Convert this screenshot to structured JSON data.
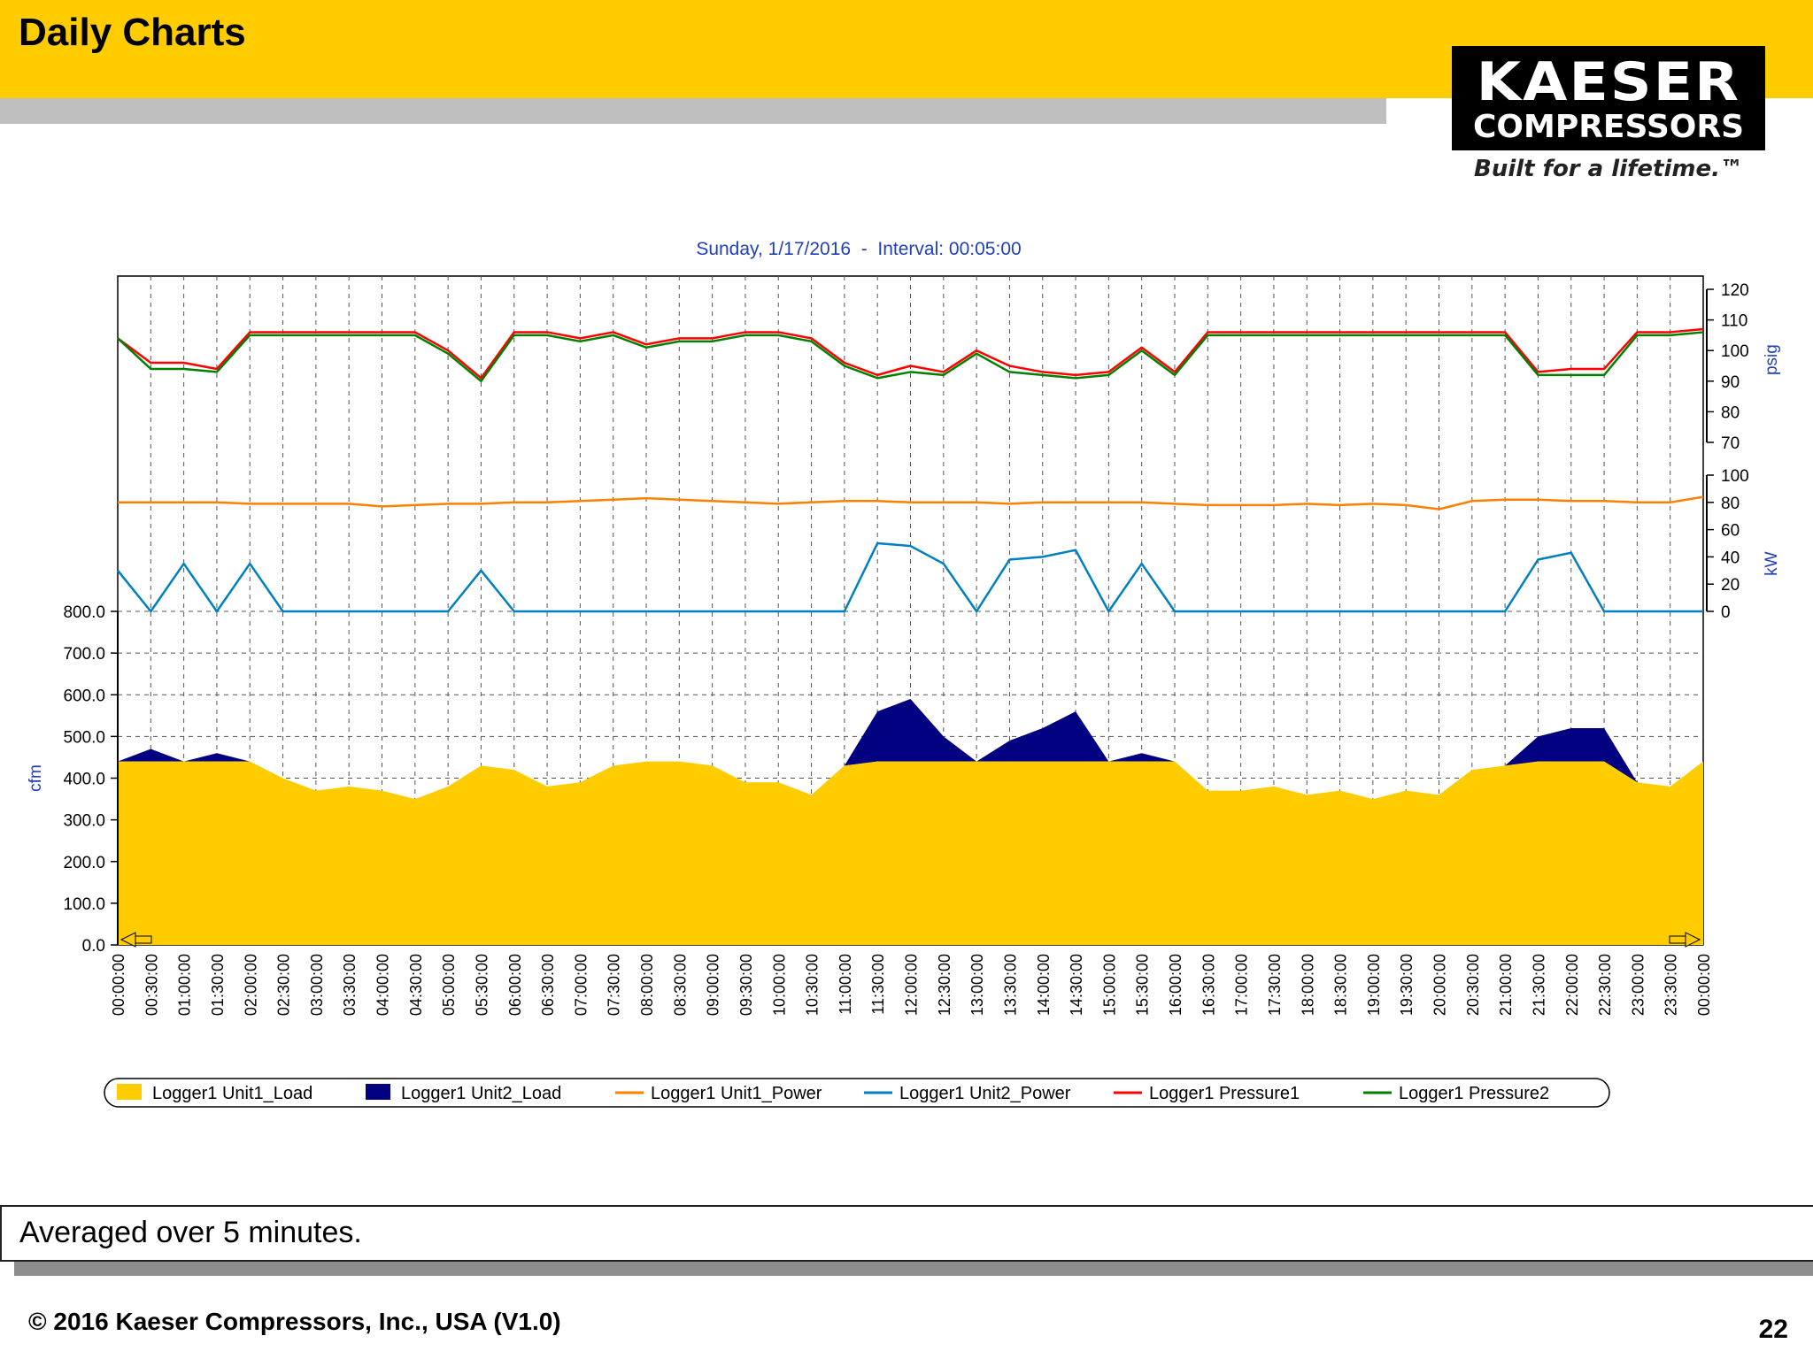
{
  "slide": {
    "title": "Daily Charts",
    "logo_line1": "KAESER",
    "logo_line2": "COMPRESSORS",
    "tagline": "Built for a lifetime.™",
    "note": "Averaged over 5 minutes.",
    "footer": "© 2016 Kaeser Compressors, Inc., USA (V1.0)",
    "page_number": "22"
  },
  "chart_data": {
    "type": "area",
    "title": "Sunday, 1/17/2016  -  Interval: 00:05:00",
    "x": [
      "00:00:00",
      "00:30:00",
      "01:00:00",
      "01:30:00",
      "02:00:00",
      "02:30:00",
      "03:00:00",
      "03:30:00",
      "04:00:00",
      "04:30:00",
      "05:00:00",
      "05:30:00",
      "06:00:00",
      "06:30:00",
      "07:00:00",
      "07:30:00",
      "08:00:00",
      "08:30:00",
      "09:00:00",
      "09:30:00",
      "10:00:00",
      "10:30:00",
      "11:00:00",
      "11:30:00",
      "12:00:00",
      "12:30:00",
      "13:00:00",
      "13:30:00",
      "14:00:00",
      "14:30:00",
      "15:00:00",
      "15:30:00",
      "16:00:00",
      "16:30:00",
      "17:00:00",
      "17:30:00",
      "18:00:00",
      "18:30:00",
      "19:00:00",
      "19:30:00",
      "20:00:00",
      "20:30:00",
      "21:00:00",
      "21:30:00",
      "22:00:00",
      "22:30:00",
      "23:00:00",
      "23:30:00",
      "00:00:00"
    ],
    "axes": {
      "cfm": {
        "label": "cfm",
        "range": [
          0,
          800
        ],
        "ticks": [
          "0.0",
          "100.0",
          "200.0",
          "300.0",
          "400.0",
          "500.0",
          "600.0",
          "700.0",
          "800.0"
        ]
      },
      "kw": {
        "label": "kW",
        "range": [
          0,
          100
        ],
        "ticks": [
          "0",
          "20",
          "40",
          "60",
          "80",
          "100"
        ]
      },
      "psig": {
        "label": "psig",
        "range": [
          70,
          120
        ],
        "ticks": [
          "70",
          "80",
          "90",
          "100",
          "110",
          "120"
        ]
      }
    },
    "grid": true,
    "legend_position": "bottom",
    "series": [
      {
        "name": "Logger1 Unit1_Load",
        "axis": "cfm",
        "color": "#ffcc00",
        "style": "area",
        "values": [
          440,
          440,
          440,
          440,
          440,
          400,
          370,
          380,
          370,
          350,
          380,
          430,
          420,
          380,
          390,
          430,
          440,
          440,
          430,
          390,
          390,
          360,
          430,
          440,
          440,
          440,
          440,
          440,
          440,
          440,
          440,
          440,
          440,
          370,
          370,
          380,
          360,
          370,
          350,
          370,
          360,
          420,
          430,
          440,
          440,
          440,
          390,
          380,
          440
        ]
      },
      {
        "name": "Logger1 Unit2_Load",
        "axis": "cfm",
        "color": "#000080",
        "style": "area",
        "values": [
          0,
          30,
          0,
          20,
          0,
          0,
          0,
          0,
          0,
          0,
          0,
          0,
          0,
          0,
          0,
          0,
          0,
          0,
          0,
          0,
          0,
          0,
          0,
          120,
          150,
          60,
          0,
          50,
          80,
          120,
          0,
          20,
          0,
          0,
          0,
          0,
          0,
          0,
          0,
          0,
          0,
          0,
          0,
          60,
          80,
          80,
          0,
          0,
          0
        ]
      },
      {
        "name": "Logger1 Unit1_Power",
        "axis": "kw",
        "color": "#ff8000",
        "style": "line",
        "values": [
          80,
          80,
          80,
          80,
          79,
          79,
          79,
          79,
          77,
          78,
          79,
          79,
          80,
          80,
          81,
          82,
          83,
          82,
          81,
          80,
          79,
          80,
          81,
          81,
          80,
          80,
          80,
          79,
          80,
          80,
          80,
          80,
          79,
          78,
          78,
          78,
          79,
          78,
          79,
          78,
          75,
          81,
          82,
          82,
          81,
          81,
          80,
          80,
          84
        ]
      },
      {
        "name": "Logger1 Unit2_Power",
        "axis": "kw",
        "color": "#0080c0",
        "style": "line",
        "values": [
          30,
          0,
          35,
          0,
          35,
          0,
          0,
          0,
          0,
          0,
          0,
          30,
          0,
          0,
          0,
          0,
          0,
          0,
          0,
          0,
          0,
          0,
          0,
          50,
          48,
          35,
          0,
          38,
          40,
          45,
          0,
          35,
          0,
          0,
          0,
          0,
          0,
          0,
          0,
          0,
          0,
          0,
          0,
          38,
          43,
          0,
          0,
          0,
          0
        ]
      },
      {
        "name": "Logger1 Pressure1",
        "axis": "psig",
        "color": "#ff0000",
        "style": "line",
        "values": [
          104,
          96,
          96,
          94,
          106,
          106,
          106,
          106,
          106,
          106,
          100,
          91,
          106,
          106,
          104,
          106,
          102,
          104,
          104,
          106,
          106,
          104,
          96,
          92,
          95,
          93,
          100,
          95,
          93,
          92,
          93,
          101,
          93,
          106,
          106,
          106,
          106,
          106,
          106,
          106,
          106,
          106,
          106,
          93,
          94,
          94,
          106,
          106,
          107
        ]
      },
      {
        "name": "Logger1 Pressure2",
        "axis": "psig",
        "color": "#008000",
        "style": "line",
        "values": [
          104,
          94,
          94,
          93,
          105,
          105,
          105,
          105,
          105,
          105,
          99,
          90,
          105,
          105,
          103,
          105,
          101,
          103,
          103,
          105,
          105,
          103,
          95,
          91,
          93,
          92,
          99,
          93,
          92,
          91,
          92,
          100,
          92,
          105,
          105,
          105,
          105,
          105,
          105,
          105,
          105,
          105,
          105,
          92,
          92,
          92,
          105,
          105,
          106
        ]
      }
    ]
  }
}
